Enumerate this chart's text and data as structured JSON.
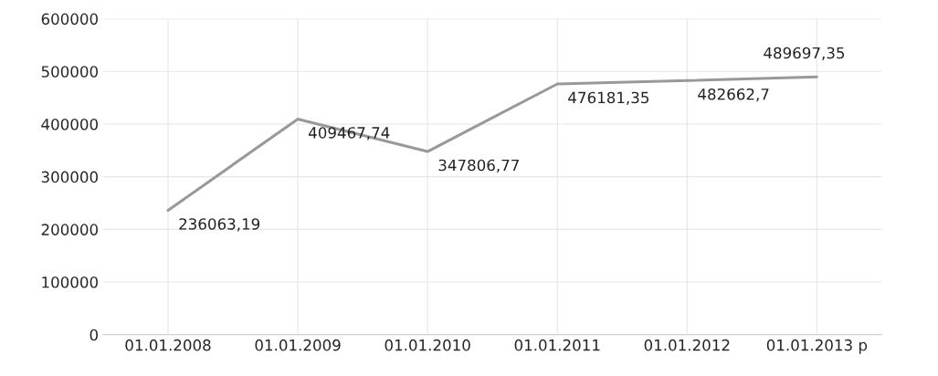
{
  "chart_data": {
    "type": "line",
    "categories": [
      "01.01.2008",
      "01.01.2009",
      "01.01.2010",
      "01.01.2011",
      "01.01.2012",
      "01.01.2013 р"
    ],
    "series": [
      {
        "color": "#999999",
        "values": [
          236063.19,
          409467.74,
          347806.77,
          476181.35,
          482662.7,
          489697.35
        ],
        "value_labels": [
          "236063,19",
          "409467,74",
          "347806,77",
          "476181,35",
          "482662,7",
          "489697,35"
        ]
      }
    ],
    "ylim": [
      0,
      600000
    ],
    "yticks": [
      0,
      100000,
      200000,
      300000,
      400000,
      500000,
      600000
    ],
    "grid": true,
    "marker": "none",
    "line_style": "solid",
    "legend": false
  }
}
